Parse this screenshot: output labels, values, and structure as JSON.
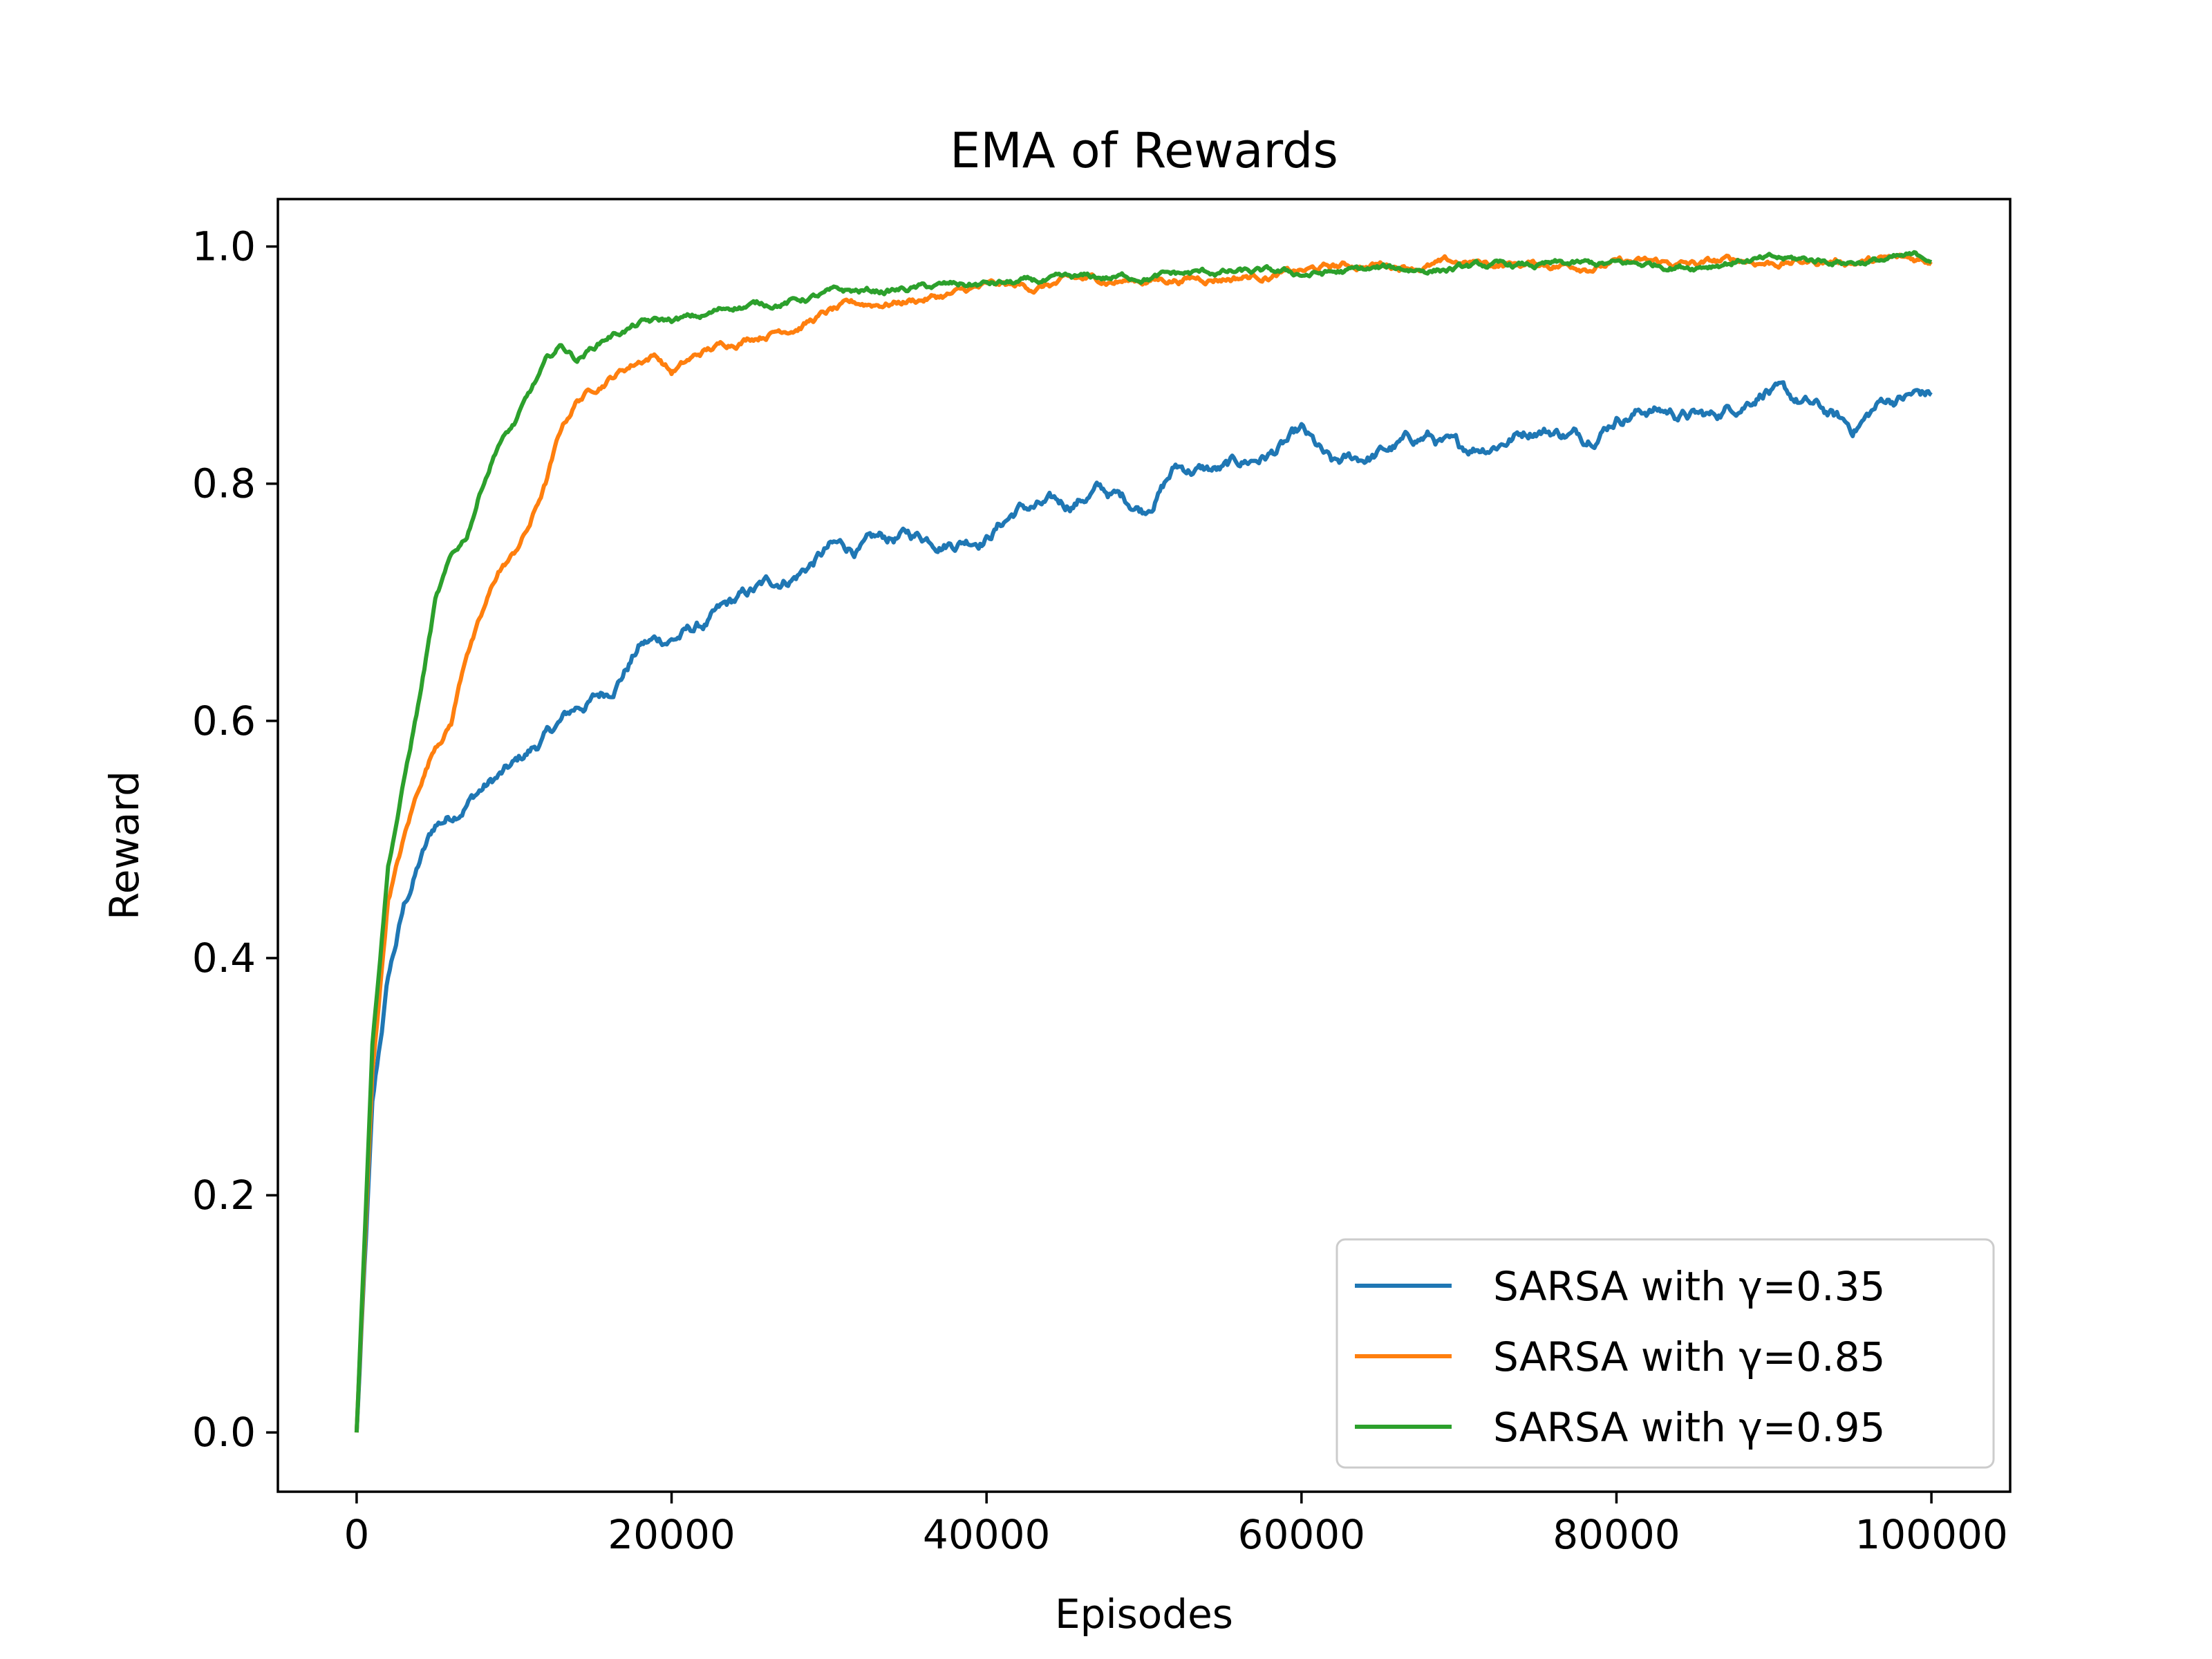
{
  "chart_data": {
    "type": "line",
    "title": "EMA of Rewards",
    "xlabel": "Episodes",
    "ylabel": "Reward",
    "xlim": [
      -5000,
      105000
    ],
    "ylim": [
      -0.05,
      1.04
    ],
    "xticks": [
      0,
      20000,
      40000,
      60000,
      80000,
      100000
    ],
    "xtick_labels": [
      "0",
      "20000",
      "40000",
      "60000",
      "80000",
      "100000"
    ],
    "yticks": [
      0.0,
      0.2,
      0.4,
      0.6,
      0.8,
      1.0
    ],
    "ytick_labels": [
      "0.0",
      "0.2",
      "0.4",
      "0.6",
      "0.8",
      "1.0"
    ],
    "grid": false,
    "legend_position": "lower-right",
    "series": [
      {
        "name": "SARSA with γ=0.35",
        "color": "#1f77b4",
        "x": [
          0,
          1000,
          2000,
          3000,
          4000,
          5000,
          6000,
          7000,
          8000,
          10000,
          12000,
          14000,
          16000,
          18000,
          20000,
          22000,
          25000,
          28000,
          30000,
          32000,
          35000,
          38000,
          40000,
          42000,
          45000,
          47000,
          50000,
          52000,
          55000,
          58000,
          60000,
          62000,
          65000,
          68000,
          70000,
          72000,
          75000,
          78000,
          80000,
          82000,
          84000,
          86000,
          88000,
          89500,
          91000,
          93000,
          95000,
          97000,
          99000,
          100000
        ],
        "y": [
          0.0,
          0.27,
          0.38,
          0.44,
          0.48,
          0.51,
          0.52,
          0.535,
          0.545,
          0.56,
          0.585,
          0.61,
          0.625,
          0.665,
          0.67,
          0.68,
          0.705,
          0.725,
          0.745,
          0.745,
          0.755,
          0.755,
          0.76,
          0.78,
          0.78,
          0.795,
          0.78,
          0.815,
          0.81,
          0.825,
          0.84,
          0.81,
          0.825,
          0.84,
          0.825,
          0.835,
          0.85,
          0.84,
          0.86,
          0.865,
          0.86,
          0.855,
          0.87,
          0.885,
          0.87,
          0.86,
          0.845,
          0.87,
          0.875,
          0.875
        ]
      },
      {
        "name": "SARSA with γ=0.85",
        "color": "#ff7f0e",
        "x": [
          0,
          1000,
          2000,
          3000,
          4000,
          5000,
          6000,
          7000,
          8000,
          9000,
          10000,
          11000,
          12000,
          13000,
          14000,
          16000,
          18000,
          19000,
          20000,
          22000,
          25000,
          28000,
          30000,
          32000,
          35000,
          38000,
          40000,
          43000,
          45000,
          50000,
          55000,
          60000,
          62000,
          65000,
          70000,
          75000,
          80000,
          85000,
          88000,
          90000,
          95000,
          100000
        ],
        "y": [
          0.0,
          0.3,
          0.45,
          0.5,
          0.545,
          0.58,
          0.6,
          0.66,
          0.69,
          0.725,
          0.74,
          0.765,
          0.8,
          0.845,
          0.87,
          0.89,
          0.905,
          0.91,
          0.895,
          0.91,
          0.925,
          0.935,
          0.945,
          0.95,
          0.955,
          0.96,
          0.965,
          0.965,
          0.97,
          0.972,
          0.975,
          0.978,
          0.982,
          0.985,
          0.985,
          0.985,
          0.986,
          0.984,
          0.988,
          0.987,
          0.988,
          0.988
        ]
      },
      {
        "name": "SARSA with γ=0.95",
        "color": "#2ca02c",
        "x": [
          0,
          1000,
          2000,
          3000,
          4000,
          5000,
          6000,
          7000,
          8000,
          9000,
          10000,
          11000,
          12000,
          13000,
          14000,
          16000,
          18000,
          20000,
          22000,
          24000,
          26000,
          28000,
          30000,
          33000,
          36000,
          40000,
          45000,
          50000,
          55000,
          60000,
          65000,
          70000,
          75000,
          80000,
          85000,
          88000,
          90000,
          95000,
          100000
        ],
        "y": [
          0.0,
          0.33,
          0.48,
          0.55,
          0.62,
          0.7,
          0.735,
          0.755,
          0.8,
          0.835,
          0.85,
          0.875,
          0.9,
          0.915,
          0.905,
          0.925,
          0.935,
          0.937,
          0.94,
          0.95,
          0.952,
          0.955,
          0.96,
          0.962,
          0.965,
          0.968,
          0.97,
          0.975,
          0.978,
          0.976,
          0.98,
          0.982,
          0.983,
          0.984,
          0.985,
          0.99,
          0.988,
          0.988,
          0.99
        ]
      }
    ]
  }
}
